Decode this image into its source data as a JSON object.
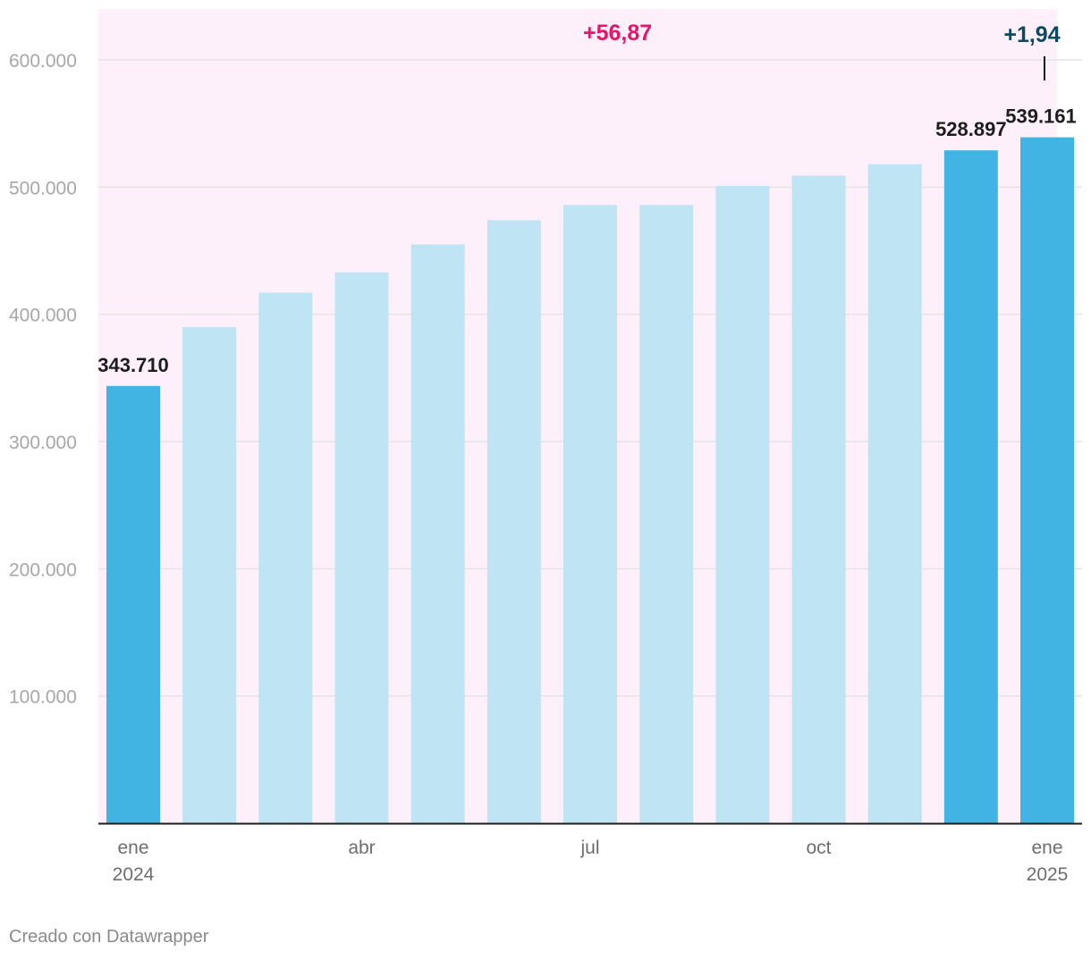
{
  "chart_data": {
    "type": "bar",
    "categories": [
      "ene 2024",
      "feb 2024",
      "mar 2024",
      "abr 2024",
      "may 2024",
      "jun 2024",
      "jul 2024",
      "ago 2024",
      "sep 2024",
      "oct 2024",
      "nov 2024",
      "dic 2024",
      "ene 2025"
    ],
    "values": [
      343710,
      390000,
      417000,
      433000,
      455000,
      474000,
      486000,
      486000,
      501000,
      509000,
      518000,
      528897,
      539161
    ],
    "highlighted": [
      true,
      false,
      false,
      false,
      false,
      false,
      false,
      false,
      false,
      false,
      false,
      true,
      true
    ],
    "value_labels": [
      {
        "index": 0,
        "text": "343.710"
      },
      {
        "index": 11,
        "text": "528.897"
      },
      {
        "index": 12,
        "text": "539.161"
      }
    ],
    "ylim": [
      0,
      600000
    ],
    "yticks": [
      {
        "value": 100000,
        "label": "100.000"
      },
      {
        "value": 200000,
        "label": "200.000"
      },
      {
        "value": 300000,
        "label": "300.000"
      },
      {
        "value": 400000,
        "label": "400.000"
      },
      {
        "value": 500000,
        "label": "500.000"
      },
      {
        "value": 600000,
        "label": "600.000"
      }
    ],
    "xticks": [
      {
        "index": 0,
        "line1": "ene",
        "line2": "2024"
      },
      {
        "index": 3,
        "line1": "abr",
        "line2": ""
      },
      {
        "index": 6,
        "line1": "jul",
        "line2": ""
      },
      {
        "index": 9,
        "line1": "oct",
        "line2": ""
      },
      {
        "index": 12,
        "line1": "ene",
        "line2": "2025"
      }
    ],
    "annotations": [
      {
        "text": "+56,87",
        "anchor_index": 6.5,
        "color": "#e0176b"
      },
      {
        "text": "+1,94",
        "anchor_index": 12,
        "color": "#0b4a63"
      }
    ],
    "colors": {
      "highlight": "#41b4e3",
      "normal": "#bfe5f5",
      "shaded_region": "#fdf0fa",
      "grid": "#e4e4e4",
      "axis": "#1d1d1d"
    },
    "grid": true,
    "title": "",
    "xlabel": "",
    "ylabel": ""
  },
  "footer": {
    "credit": "Creado con Datawrapper"
  }
}
